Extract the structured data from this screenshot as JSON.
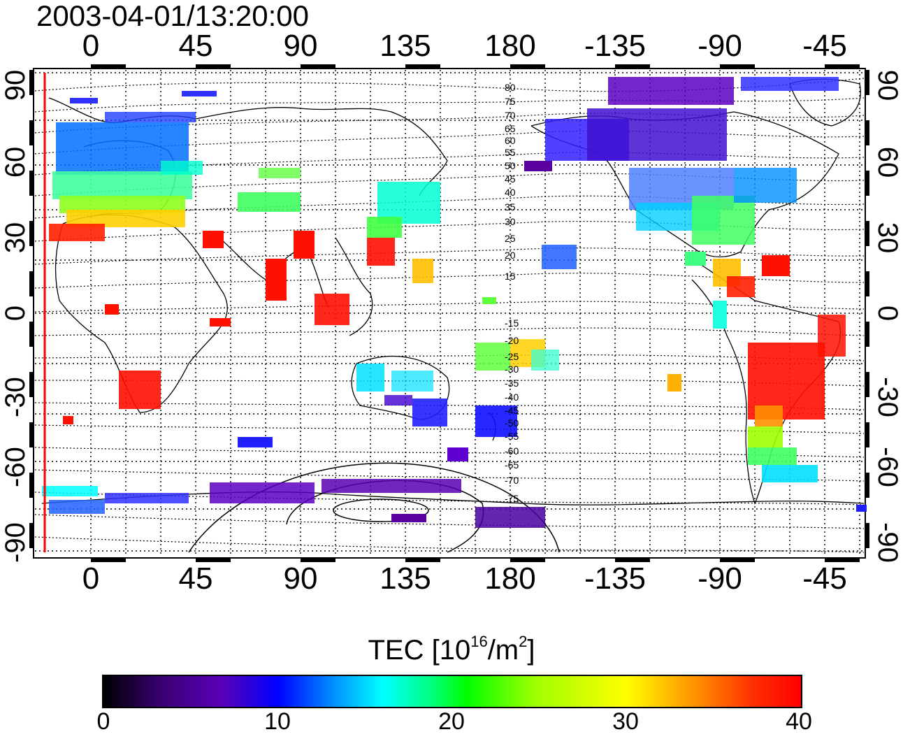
{
  "title": "2003-04-01/13:20:00",
  "map": {
    "top_lon_ticks": [
      "0",
      "45",
      "90",
      "135",
      "180",
      "-135",
      "-90",
      "-45"
    ],
    "bottom_lon_ticks": [
      "0",
      "45",
      "90",
      "135",
      "180",
      "-135",
      "-90",
      "-45"
    ],
    "left_lat_ticks": [
      "90",
      "60",
      "30",
      "0",
      "-30",
      "-60",
      "-90"
    ],
    "right_lat_ticks": [
      "90",
      "60",
      "30",
      "0",
      "-30",
      "-60",
      "-90"
    ],
    "contour_labels": [
      "80",
      "75",
      "70",
      "65",
      "60",
      "55",
      "50",
      "45",
      "40",
      "35",
      "30",
      "25",
      "20",
      "15",
      "-15",
      "-20",
      "-25",
      "-30",
      "-35",
      "-40",
      "-45",
      "-50",
      "-55",
      "-60",
      "-65",
      "-70",
      "-75"
    ]
  },
  "colorbar": {
    "title_prefix": "TEC  [10",
    "title_exp1": "16",
    "title_mid": "/m",
    "title_exp2": "2",
    "title_suffix": "]",
    "ticks": [
      "0",
      "10",
      "20",
      "30",
      "40"
    ],
    "range": [
      0,
      40
    ]
  },
  "colors": {
    "accent_border": "#ff0000",
    "scale": [
      "#000000",
      "#5a00b8",
      "#0000ff",
      "#00ffff",
      "#00ff00",
      "#ffff00",
      "#ff9000",
      "#ff0000"
    ]
  }
}
